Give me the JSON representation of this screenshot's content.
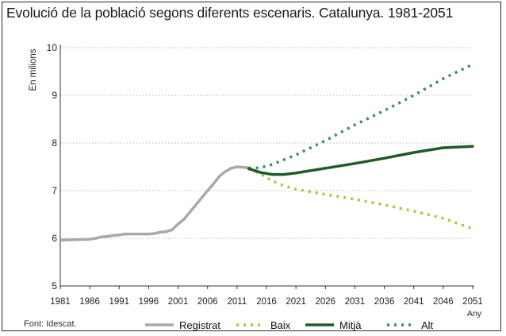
{
  "chart_data": {
    "type": "line",
    "title": "Evolució de la població segons diferents escenaris. Catalunya. 1981-2051",
    "ylabel": "En milions",
    "xlabel": "Any",
    "source": "Font: Idescat.",
    "ylim": [
      5,
      10
    ],
    "xlim": [
      1981,
      2051
    ],
    "y_ticks": [
      "5",
      "6",
      "7",
      "8",
      "9",
      "10"
    ],
    "x_ticks": [
      "1981",
      "1986",
      "1991",
      "1996",
      "2001",
      "2006",
      "2011",
      "2016",
      "2021",
      "2026",
      "2031",
      "2036",
      "2041",
      "2046",
      "2051"
    ],
    "grid": "horizontal dotted",
    "legend_position": "bottom",
    "series": [
      {
        "name": "Registrat",
        "style": "solid",
        "color": "#a9a9a9",
        "x": [
          1981,
          1983,
          1986,
          1987,
          1988,
          1989,
          1990,
          1991,
          1992,
          1993,
          1996,
          1997,
          1998,
          1999,
          2000,
          2001,
          2002,
          2003,
          2004,
          2005,
          2006,
          2007,
          2008,
          2009,
          2010,
          2011,
          2012,
          2013
        ],
        "values": [
          5.96,
          5.97,
          5.98,
          6.0,
          6.03,
          6.04,
          6.06,
          6.07,
          6.09,
          6.09,
          6.09,
          6.1,
          6.13,
          6.14,
          6.18,
          6.3,
          6.4,
          6.55,
          6.7,
          6.85,
          7.0,
          7.14,
          7.3,
          7.4,
          7.47,
          7.5,
          7.49,
          7.48
        ]
      },
      {
        "name": "Baix",
        "style": "dotted",
        "color": "#9ccc40",
        "x": [
          2013,
          2015,
          2017,
          2019,
          2021,
          2026,
          2031,
          2036,
          2041,
          2046,
          2051
        ],
        "values": [
          7.46,
          7.35,
          7.2,
          7.1,
          7.03,
          6.92,
          6.82,
          6.7,
          6.57,
          6.42,
          6.2
        ]
      },
      {
        "name": "Mitjà",
        "style": "solid",
        "color": "#1f5c24",
        "x": [
          2013,
          2015,
          2017,
          2019,
          2021,
          2026,
          2031,
          2036,
          2041,
          2046,
          2051
        ],
        "values": [
          7.46,
          7.38,
          7.34,
          7.34,
          7.37,
          7.47,
          7.57,
          7.68,
          7.8,
          7.9,
          7.93
        ]
      },
      {
        "name": "Alt",
        "style": "dotted",
        "color": "#3d8a5a",
        "x": [
          2013,
          2015,
          2017,
          2019,
          2021,
          2026,
          2031,
          2036,
          2041,
          2046,
          2051
        ],
        "values": [
          7.47,
          7.48,
          7.55,
          7.65,
          7.75,
          8.05,
          8.38,
          8.68,
          9.0,
          9.35,
          9.65
        ]
      }
    ]
  }
}
